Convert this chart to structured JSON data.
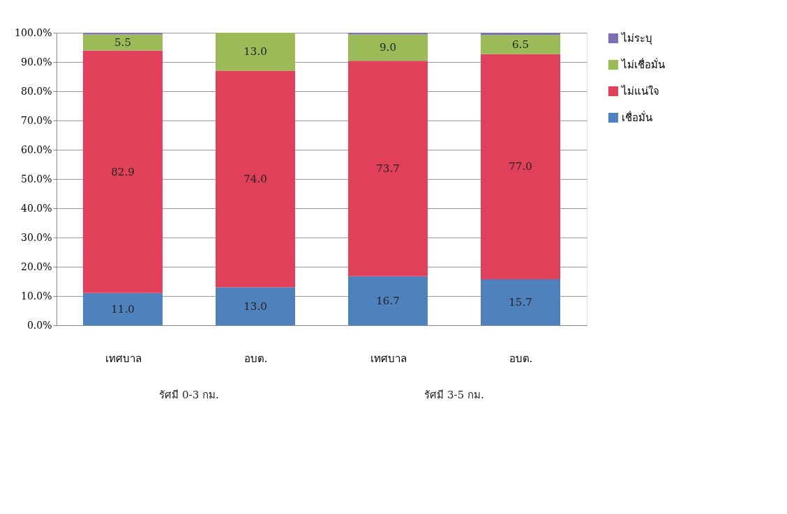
{
  "chart_data": {
    "type": "bar",
    "stacked": true,
    "categories": [
      "เทศบาล",
      "อบต.",
      "เทศบาล",
      "อบต."
    ],
    "series": [
      {
        "name": "เชื่อมั่น",
        "color": "#4f81bd",
        "values": [
          11.0,
          13.0,
          16.7,
          15.7
        ],
        "value_labels": [
          "11.0",
          "13.0",
          "16.7",
          "15.7"
        ]
      },
      {
        "name": "ไม่แน่ใจ",
        "color": "#e0405a",
        "values": [
          82.9,
          74.0,
          73.7,
          77.0
        ],
        "value_labels": [
          "82.9",
          "74.0",
          "73.7",
          "77.0"
        ]
      },
      {
        "name": "ไม่เชื่อมั่น",
        "color": "#9bbb59",
        "values": [
          5.5,
          13.0,
          9.0,
          6.5
        ],
        "value_labels": [
          "5.5",
          "13.0",
          "9.0",
          "6.5"
        ]
      },
      {
        "name": "ไม่ระบุ",
        "color": "#7f6fb0",
        "values": [
          0.6,
          0.0,
          0.6,
          0.8
        ]
      }
    ],
    "ylim": [
      0,
      100
    ],
    "yticks": [
      {
        "value": 0,
        "label": "0.0%"
      },
      {
        "value": 10,
        "label": "10.0%"
      },
      {
        "value": 20,
        "label": "20.0%"
      },
      {
        "value": 30,
        "label": "30.0%"
      },
      {
        "value": 40,
        "label": "40.0%"
      },
      {
        "value": 50,
        "label": "50.0%"
      },
      {
        "value": 60,
        "label": "60.0%"
      },
      {
        "value": 70,
        "label": "70.0%"
      },
      {
        "value": 80,
        "label": "80.0%"
      },
      {
        "value": 90,
        "label": "90.0%"
      },
      {
        "value": 100,
        "label": "100.0%"
      }
    ],
    "annotations": [
      "รัศมี 0-3 กม.",
      "รัศมี 3-5 กม."
    ],
    "grid": "y",
    "legend": "right"
  }
}
